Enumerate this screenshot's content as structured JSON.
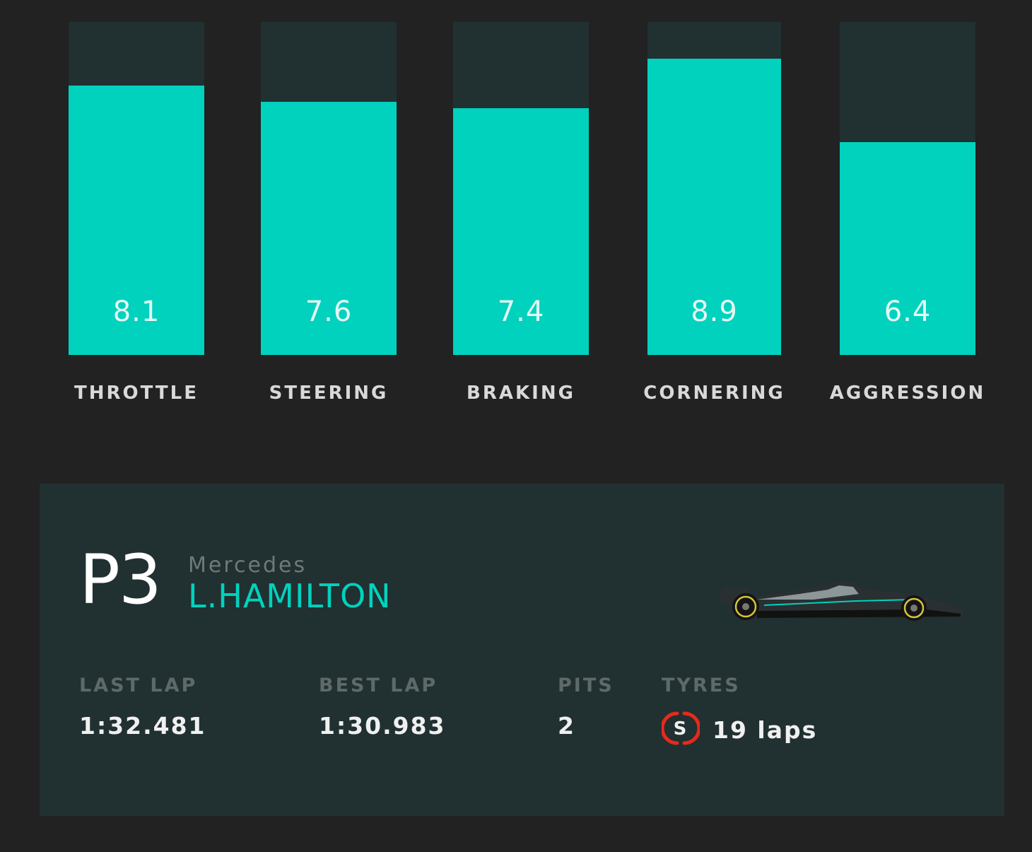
{
  "colors": {
    "accent": "#00d2be",
    "track": "#213030",
    "background": "#222222",
    "card": "#213030",
    "tyre_soft": "#e8291c"
  },
  "chart_data": {
    "type": "bar",
    "categories": [
      "THROTTLE",
      "STEERING",
      "BRAKING",
      "CORNERING",
      "AGGRESSION"
    ],
    "values": [
      8.1,
      7.6,
      7.4,
      8.9,
      6.4
    ],
    "value_labels": [
      "8.1",
      "7.6",
      "7.4",
      "8.9",
      "6.4"
    ],
    "ylim": [
      0,
      10
    ],
    "grid": false,
    "legend": "none"
  },
  "driver": {
    "position": "P3",
    "team": "Mercedes",
    "name": "L.HAMILTON",
    "car_icon": "mercedes-f1-car"
  },
  "stats": {
    "last_lap_label": "LAST LAP",
    "last_lap_value": "1:32.481",
    "best_lap_label": "BEST LAP",
    "best_lap_value": "1:30.983",
    "pits_label": "PITS",
    "pits_value": "2",
    "tyres_label": "TYRES",
    "tyre_compound": "S",
    "tyre_icon": "soft-tyre-icon",
    "tyres_value": "19 laps"
  }
}
